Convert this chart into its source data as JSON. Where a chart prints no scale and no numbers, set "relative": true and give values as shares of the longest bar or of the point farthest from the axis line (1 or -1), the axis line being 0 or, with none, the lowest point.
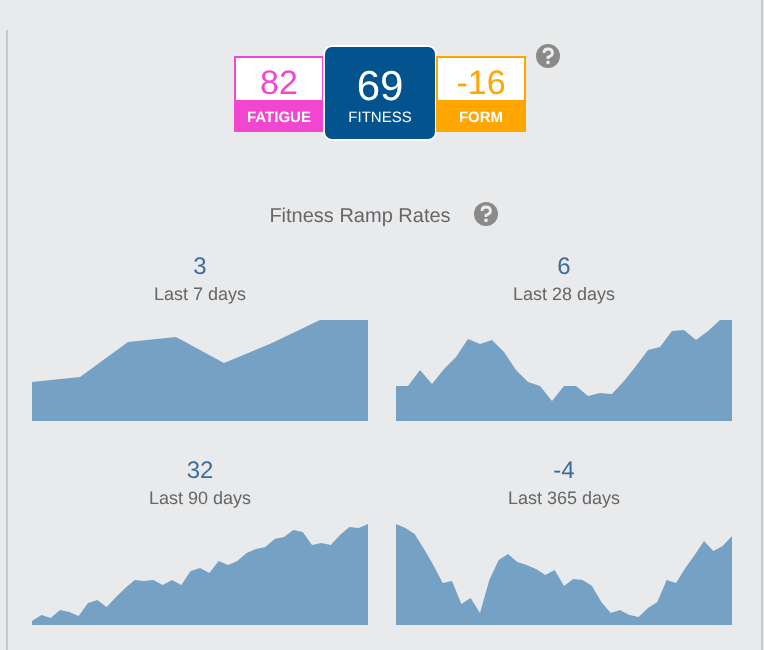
{
  "chart_data": [
    {
      "type": "other",
      "colors": [
        "#f246d0",
        "#03538f",
        "#ffa600"
      ],
      "annotations": [
        "82",
        "FATIGUE",
        "69",
        "FITNESS",
        "-16",
        "FORM",
        "Fitness Ramp Rates"
      ]
    },
    {
      "type": "area",
      "title": "3",
      "subtitle": "Last 7 days",
      "relative": true,
      "color": "#75a1c4",
      "categories": [
        null,
        null,
        null,
        null,
        null,
        null,
        null,
        null
      ],
      "values": [
        0.38,
        0.43,
        0.78,
        0.83,
        0.57,
        0.77,
        1,
        1
      ]
    },
    {
      "type": "area",
      "title": "6",
      "subtitle": "Last 28 days",
      "relative": true,
      "color": "#75a1c4",
      "categories": [
        null,
        null,
        null,
        null,
        null,
        null,
        null,
        null,
        null,
        null,
        null,
        null,
        null,
        null,
        null,
        null,
        null,
        null,
        null,
        null,
        null,
        null,
        null,
        null,
        null,
        null,
        null,
        null,
        null
      ],
      "values": [
        0.34,
        0.34,
        0.5,
        0.36,
        0.51,
        0.63,
        0.81,
        0.76,
        0.8,
        0.68,
        0.5,
        0.38,
        0.34,
        0.19,
        0.34,
        0.34,
        0.24,
        0.27,
        0.26,
        0.39,
        0.54,
        0.7,
        0.73,
        0.89,
        0.9,
        0.8,
        0.89,
        1,
        1
      ]
    },
    {
      "type": "area",
      "title": "32",
      "subtitle": "Last 90 days",
      "relative": true,
      "color": "#75a1c4",
      "categories": [
        null,
        null,
        null,
        null,
        null,
        null,
        null,
        null,
        null,
        null,
        null,
        null,
        null,
        null,
        null,
        null,
        null,
        null,
        null,
        null,
        null,
        null,
        null,
        null,
        null,
        null,
        null,
        null,
        null,
        null,
        null,
        null,
        null,
        null,
        null,
        null,
        null
      ],
      "values": [
        0.03,
        0.09,
        0.06,
        0.14,
        0.12,
        0.08,
        0.21,
        0.24,
        0.17,
        0.27,
        0.36,
        0.44,
        0.43,
        0.44,
        0.39,
        0.44,
        0.39,
        0.53,
        0.56,
        0.51,
        0.63,
        0.59,
        0.63,
        0.71,
        0.75,
        0.77,
        0.85,
        0.87,
        0.94,
        0.92,
        0.79,
        0.81,
        0.79,
        0.89,
        0.97,
        0.96,
        1
      ]
    },
    {
      "type": "area",
      "title": "-4",
      "subtitle": "Last 365 days",
      "relative": true,
      "color": "#75a1c4",
      "categories": [
        null,
        null,
        null,
        null,
        null,
        null,
        null,
        null,
        null,
        null,
        null,
        null,
        null,
        null,
        null,
        null,
        null,
        null,
        null,
        null,
        null,
        null,
        null,
        null,
        null,
        null,
        null,
        null,
        null,
        null,
        null,
        null,
        null,
        null,
        null,
        null,
        null
      ],
      "values": [
        1,
        0.96,
        0.9,
        0.75,
        0.59,
        0.41,
        0.43,
        0.2,
        0.26,
        0.11,
        0.44,
        0.64,
        0.7,
        0.62,
        0.59,
        0.55,
        0.49,
        0.54,
        0.38,
        0.45,
        0.44,
        0.38,
        0.22,
        0.11,
        0.14,
        0.09,
        0.07,
        0.16,
        0.22,
        0.44,
        0.41,
        0.56,
        0.69,
        0.83,
        0.73,
        0.78,
        0.88
      ]
    }
  ]
}
